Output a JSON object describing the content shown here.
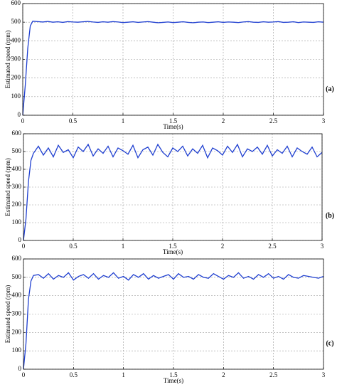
{
  "chart_data": [
    {
      "type": "line",
      "panel_label": "(a)",
      "xlabel": "Time(s)",
      "ylabel": "Estimated speed (rpm)",
      "xlim": [
        0,
        3
      ],
      "ylim": [
        0,
        600
      ],
      "xticks": [
        0,
        0.5,
        1,
        1.5,
        2,
        2.5,
        3
      ],
      "yticks": [
        0,
        100,
        200,
        300,
        400,
        500,
        600
      ],
      "grid": true,
      "x": [
        0,
        0.025,
        0.05,
        0.075,
        0.1,
        0.15,
        0.2,
        0.25,
        0.3,
        0.35,
        0.4,
        0.45,
        0.5,
        0.55,
        0.6,
        0.65,
        0.7,
        0.75,
        0.8,
        0.85,
        0.9,
        0.95,
        1,
        1.05,
        1.1,
        1.15,
        1.2,
        1.25,
        1.3,
        1.35,
        1.4,
        1.45,
        1.5,
        1.55,
        1.6,
        1.65,
        1.7,
        1.75,
        1.8,
        1.85,
        1.9,
        1.95,
        2,
        2.05,
        2.1,
        2.15,
        2.2,
        2.25,
        2.3,
        2.35,
        2.4,
        2.45,
        2.5,
        2.55,
        2.6,
        2.65,
        2.7,
        2.75,
        2.8,
        2.85,
        2.9,
        2.95,
        3
      ],
      "series": [
        {
          "color": "#1f3fd0",
          "values": [
            0,
            160,
            360,
            480,
            505,
            503,
            501,
            504,
            500,
            502,
            499,
            503,
            501,
            500,
            502,
            504,
            501,
            499,
            502,
            500,
            503,
            501,
            498,
            500,
            502,
            499,
            501,
            503,
            500,
            497,
            499,
            501,
            498,
            500,
            502,
            499,
            497,
            500,
            501,
            498,
            500,
            502,
            499,
            501,
            500,
            498,
            501,
            503,
            500,
            499,
            502,
            500,
            501,
            503,
            499,
            500,
            502,
            498,
            501,
            500,
            499,
            502,
            500
          ]
        }
      ]
    },
    {
      "type": "line",
      "panel_label": "(b)",
      "xlabel": "Time(s)",
      "ylabel": "Estimated speed (rpm)",
      "xlim": [
        0,
        3
      ],
      "ylim": [
        0,
        600
      ],
      "xticks": [
        0,
        0.5,
        1,
        1.5,
        2,
        2.5,
        3
      ],
      "yticks": [
        0,
        100,
        200,
        300,
        400,
        500,
        600
      ],
      "grid": true,
      "x": [
        0,
        0.025,
        0.05,
        0.075,
        0.1,
        0.15,
        0.2,
        0.25,
        0.3,
        0.35,
        0.4,
        0.45,
        0.5,
        0.55,
        0.6,
        0.65,
        0.7,
        0.75,
        0.8,
        0.85,
        0.9,
        0.95,
        1,
        1.05,
        1.1,
        1.15,
        1.2,
        1.25,
        1.3,
        1.35,
        1.4,
        1.45,
        1.5,
        1.55,
        1.6,
        1.65,
        1.7,
        1.75,
        1.8,
        1.85,
        1.9,
        1.95,
        2,
        2.05,
        2.1,
        2.15,
        2.2,
        2.25,
        2.3,
        2.35,
        2.4,
        2.45,
        2.5,
        2.55,
        2.6,
        2.65,
        2.7,
        2.75,
        2.8,
        2.85,
        2.9,
        2.95,
        3
      ],
      "series": [
        {
          "color": "#1f3fd0",
          "values": [
            0,
            120,
            330,
            450,
            490,
            530,
            480,
            520,
            470,
            535,
            495,
            510,
            465,
            525,
            500,
            540,
            475,
            515,
            490,
            530,
            470,
            520,
            505,
            485,
            535,
            465,
            510,
            525,
            480,
            540,
            495,
            470,
            520,
            500,
            530,
            475,
            515,
            490,
            535,
            465,
            520,
            505,
            480,
            530,
            495,
            540,
            470,
            515,
            500,
            525,
            485,
            535,
            475,
            510,
            490,
            530,
            470,
            520,
            500,
            485,
            525,
            470,
            495
          ]
        }
      ]
    },
    {
      "type": "line",
      "panel_label": "(c)",
      "xlabel": "Time(s)",
      "ylabel": "Estimated speed (rpm)",
      "xlim": [
        0,
        3
      ],
      "ylim": [
        0,
        600
      ],
      "xticks": [
        0,
        0.5,
        1,
        1.5,
        2,
        2.5,
        3
      ],
      "yticks": [
        0,
        100,
        200,
        300,
        400,
        500,
        600
      ],
      "grid": true,
      "x": [
        0,
        0.025,
        0.05,
        0.075,
        0.1,
        0.15,
        0.2,
        0.25,
        0.3,
        0.35,
        0.4,
        0.45,
        0.5,
        0.55,
        0.6,
        0.65,
        0.7,
        0.75,
        0.8,
        0.85,
        0.9,
        0.95,
        1,
        1.05,
        1.1,
        1.15,
        1.2,
        1.25,
        1.3,
        1.35,
        1.4,
        1.45,
        1.5,
        1.55,
        1.6,
        1.65,
        1.7,
        1.75,
        1.8,
        1.85,
        1.9,
        1.95,
        2,
        2.05,
        2.1,
        2.15,
        2.2,
        2.25,
        2.3,
        2.35,
        2.4,
        2.45,
        2.5,
        2.55,
        2.6,
        2.65,
        2.7,
        2.75,
        2.8,
        2.85,
        2.9,
        2.95,
        3
      ],
      "series": [
        {
          "color": "#1f3fd0",
          "values": [
            0,
            140,
            380,
            480,
            510,
            515,
            495,
            520,
            490,
            510,
            500,
            525,
            485,
            505,
            515,
            495,
            520,
            490,
            510,
            500,
            525,
            495,
            505,
            485,
            515,
            500,
            520,
            490,
            510,
            495,
            505,
            515,
            490,
            520,
            500,
            505,
            490,
            515,
            500,
            495,
            520,
            505,
            490,
            510,
            500,
            525,
            495,
            505,
            490,
            515,
            500,
            520,
            495,
            505,
            490,
            515,
            500,
            495,
            510,
            505,
            500,
            495,
            505
          ]
        }
      ]
    }
  ]
}
